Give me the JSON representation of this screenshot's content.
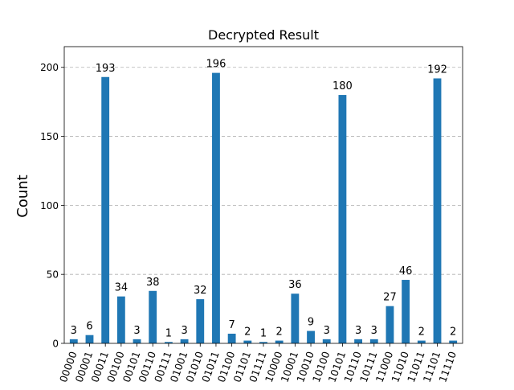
{
  "chart_data": {
    "type": "bar",
    "title": "Decrypted Result",
    "xlabel": "",
    "ylabel": "Count",
    "ylim": [
      0,
      215
    ],
    "yticks": [
      0,
      50,
      100,
      150,
      200
    ],
    "grid": "horizontal dashed",
    "bar_color": "#1f77b4",
    "categories": [
      "00000",
      "00001",
      "00011",
      "00100",
      "00101",
      "00110",
      "00111",
      "01001",
      "01010",
      "01011",
      "01100",
      "01101",
      "01111",
      "10000",
      "10001",
      "10010",
      "10100",
      "10101",
      "10110",
      "10111",
      "11000",
      "11010",
      "11011",
      "11101",
      "11110"
    ],
    "values": [
      3,
      6,
      193,
      34,
      3,
      38,
      1,
      3,
      32,
      196,
      7,
      2,
      1,
      2,
      36,
      9,
      3,
      180,
      3,
      3,
      27,
      46,
      2,
      192,
      2
    ]
  }
}
